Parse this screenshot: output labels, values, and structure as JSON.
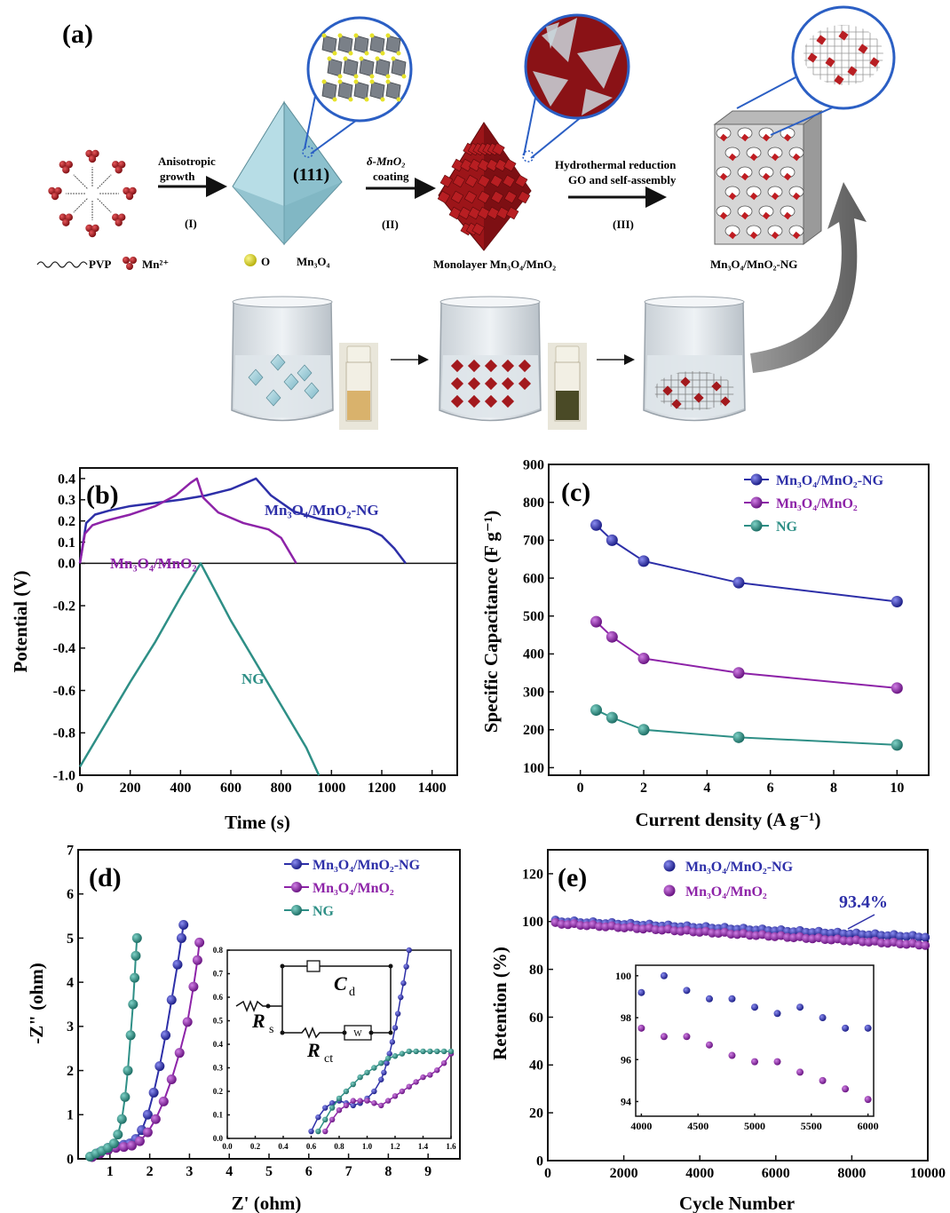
{
  "panel_a": {
    "label": "(a)",
    "step1_label": "Anisotropic growth",
    "step1_label_line1": "Anisotropic",
    "step1_label_line2": "growth",
    "step1_num": "(I)",
    "step2_label_line1": "δ-MnO₂",
    "step2_label_line2": "coating",
    "step2_num": "(II)",
    "step3_label_line1": "Hydrothermal reduction",
    "step3_label_line2": "GO and self-assembly",
    "step3_num": "(III)",
    "facet_label": "(111)",
    "legend_pvp": "PVP",
    "legend_mn": "Mn²⁺",
    "legend_o": "O",
    "legend_mn3o4": "Mn₃O₄",
    "product2": "Monolayer Mn₃O₄/MnO₂",
    "product3": "Mn₃O₄/MnO₂-NG"
  },
  "colors": {
    "ng_blue": "#2d2fa8",
    "mno2_purple": "#8d23a8",
    "ng_teal": "#2e8f86",
    "crystal_red": "#a3191d",
    "octa_blue": "#a8d6e0",
    "ring_blue": "#2b5fc4"
  },
  "chart_data": [
    {
      "panel": "(b)",
      "type": "line",
      "xlabel": "Time (s)",
      "ylabel": "Potential (V)",
      "xlim": [
        0,
        1500
      ],
      "ylim": [
        -1.0,
        0.45
      ],
      "xticks": [
        "0",
        "200",
        "400",
        "600",
        "800",
        "1000",
        "1200",
        "1400"
      ],
      "yticks": [
        "-1.0",
        "-0.8",
        "-0.6",
        "-0.4",
        "-0.2",
        "0.0",
        "0.1",
        "0.2",
        "0.3",
        "0.4"
      ],
      "series": [
        {
          "name": "Mn₃O₄/MnO₂-NG",
          "x": [
            0,
            25,
            60,
            120,
            200,
            300,
            400,
            500,
            600,
            700,
            760,
            850,
            950,
            1050,
            1150,
            1200,
            1250,
            1295
          ],
          "y": [
            0,
            0.19,
            0.23,
            0.25,
            0.27,
            0.285,
            0.3,
            0.32,
            0.35,
            0.4,
            0.32,
            0.245,
            0.21,
            0.185,
            0.16,
            0.13,
            0.07,
            0
          ]
        },
        {
          "name": "Mn₃O₄/MnO₂",
          "x": [
            0,
            20,
            50,
            100,
            200,
            300,
            380,
            440,
            465,
            490,
            550,
            650,
            750,
            800,
            830,
            860
          ],
          "y": [
            0,
            0.14,
            0.18,
            0.2,
            0.23,
            0.27,
            0.32,
            0.38,
            0.4,
            0.31,
            0.24,
            0.19,
            0.16,
            0.12,
            0.06,
            0
          ]
        },
        {
          "name": "NG",
          "x": [
            0,
            100,
            200,
            300,
            400,
            480,
            600,
            700,
            800,
            900,
            950
          ],
          "y": [
            -0.96,
            -0.76,
            -0.56,
            -0.37,
            -0.16,
            0,
            -0.27,
            -0.47,
            -0.67,
            -0.87,
            -1.0
          ]
        }
      ],
      "annotations": [
        "Mn₃O₄/MnO₂-NG",
        "Mn₃O₄/MnO₂",
        "NG"
      ]
    },
    {
      "panel": "(c)",
      "type": "line",
      "xlabel": "Current density (A g⁻¹)",
      "ylabel": "Specific Capacitance (F g⁻¹)",
      "xlim": [
        -1,
        11
      ],
      "ylim": [
        80,
        900
      ],
      "xticks": [
        "0",
        "2",
        "4",
        "6",
        "8",
        "10"
      ],
      "yticks": [
        "100",
        "200",
        "300",
        "400",
        "500",
        "600",
        "700",
        "800",
        "900"
      ],
      "x": [
        0.5,
        1,
        2,
        5,
        10
      ],
      "series": [
        {
          "name": "Mn₃O₄/MnO₂-NG",
          "values": [
            740,
            700,
            645,
            588,
            538
          ]
        },
        {
          "name": "Mn₃O₄/MnO₂",
          "values": [
            485,
            445,
            388,
            350,
            310
          ]
        },
        {
          "name": "NG",
          "values": [
            252,
            232,
            200,
            180,
            160
          ]
        }
      ],
      "legend": "top-right"
    },
    {
      "panel": "(d)",
      "type": "scatter",
      "xlabel": "Z' (ohm)",
      "ylabel": "-Z\" (ohm)",
      "xlim": [
        0.2,
        9.8
      ],
      "ylim": [
        0,
        7
      ],
      "xticks": [
        "1",
        "2",
        "3",
        "4",
        "5",
        "6",
        "7",
        "8",
        "9"
      ],
      "yticks": [
        "0",
        "1",
        "2",
        "3",
        "4",
        "5",
        "6",
        "7"
      ],
      "series": [
        {
          "name": "Mn₃O₄/MnO₂-NG",
          "x": [
            0.55,
            0.75,
            0.95,
            1.15,
            1.35,
            1.5,
            1.65,
            1.8,
            1.95,
            2.1,
            2.25,
            2.4,
            2.55,
            2.7,
            2.8,
            2.85
          ],
          "y": [
            0.05,
            0.15,
            0.25,
            0.3,
            0.32,
            0.35,
            0.45,
            0.65,
            1.0,
            1.5,
            2.1,
            2.8,
            3.6,
            4.4,
            5.0,
            5.3
          ]
        },
        {
          "name": "Mn₃O₄/MnO₂",
          "x": [
            0.55,
            0.75,
            0.95,
            1.15,
            1.35,
            1.55,
            1.75,
            1.95,
            2.15,
            2.35,
            2.55,
            2.75,
            2.95,
            3.1,
            3.2,
            3.25
          ],
          "y": [
            0.04,
            0.12,
            0.2,
            0.25,
            0.27,
            0.3,
            0.4,
            0.6,
            0.9,
            1.3,
            1.8,
            2.4,
            3.1,
            3.9,
            4.5,
            4.9
          ]
        },
        {
          "name": "NG",
          "x": [
            0.5,
            0.65,
            0.8,
            0.95,
            1.1,
            1.2,
            1.3,
            1.38,
            1.45,
            1.52,
            1.58,
            1.62,
            1.65,
            1.68
          ],
          "y": [
            0.05,
            0.12,
            0.18,
            0.25,
            0.35,
            0.55,
            0.9,
            1.4,
            2.0,
            2.8,
            3.5,
            4.1,
            4.6,
            5.0
          ]
        }
      ],
      "legend": "top-right",
      "inset": {
        "xlim": [
          0,
          1.6
        ],
        "ylim": [
          0,
          0.8
        ],
        "xticks": [
          "0.0",
          "0.2",
          "0.4",
          "0.6",
          "0.8",
          "1.0",
          "1.2",
          "1.4",
          "1.6"
        ],
        "yticks": [
          "0.0",
          "0.1",
          "0.2",
          "0.3",
          "0.4",
          "0.5",
          "0.6",
          "0.7",
          "0.8"
        ],
        "circuit": {
          "rs": "R",
          "rs_sub": "s",
          "rct": "R",
          "rct_sub": "ct",
          "cd": "C",
          "cd_sub": "d",
          "w": "W"
        },
        "series": [
          {
            "name": "Mn₃O₄/MnO₂-NG",
            "x": [
              0.6,
              0.65,
              0.7,
              0.75,
              0.8,
              0.85,
              0.9,
              0.95,
              1.0,
              1.05,
              1.1,
              1.12,
              1.14,
              1.16,
              1.18,
              1.2,
              1.22,
              1.24,
              1.26,
              1.28,
              1.3
            ],
            "y": [
              0.03,
              0.09,
              0.13,
              0.15,
              0.16,
              0.15,
              0.14,
              0.15,
              0.17,
              0.2,
              0.25,
              0.28,
              0.32,
              0.36,
              0.41,
              0.47,
              0.53,
              0.6,
              0.66,
              0.73,
              0.8
            ]
          },
          {
            "name": "Mn₃O₄/MnO₂",
            "x": [
              0.7,
              0.75,
              0.8,
              0.85,
              0.9,
              0.95,
              1.0,
              1.05,
              1.1,
              1.15,
              1.2,
              1.25,
              1.3,
              1.35,
              1.4,
              1.45,
              1.5,
              1.55,
              1.6
            ],
            "y": [
              0.03,
              0.08,
              0.12,
              0.14,
              0.16,
              0.16,
              0.16,
              0.15,
              0.14,
              0.16,
              0.18,
              0.2,
              0.22,
              0.24,
              0.26,
              0.27,
              0.29,
              0.32,
              0.36
            ]
          },
          {
            "name": "NG",
            "x": [
              0.65,
              0.7,
              0.75,
              0.8,
              0.85,
              0.9,
              0.95,
              1.0,
              1.05,
              1.1,
              1.15,
              1.2,
              1.25,
              1.3,
              1.35,
              1.4,
              1.45,
              1.5,
              1.55,
              1.6
            ],
            "y": [
              0.03,
              0.08,
              0.13,
              0.17,
              0.2,
              0.23,
              0.26,
              0.28,
              0.3,
              0.32,
              0.34,
              0.35,
              0.36,
              0.37,
              0.37,
              0.37,
              0.37,
              0.37,
              0.37,
              0.37
            ]
          }
        ]
      }
    },
    {
      "panel": "(e)",
      "type": "scatter",
      "xlabel": "Cycle Number",
      "ylabel": "Retention (%)",
      "xlim": [
        0,
        10000
      ],
      "ylim": [
        0,
        130
      ],
      "xticks": [
        "0",
        "2000",
        "4000",
        "6000",
        "8000",
        "10000"
      ],
      "yticks": [
        "0",
        "20",
        "40",
        "60",
        "80",
        "100",
        "120"
      ],
      "annotation": "93.4%",
      "series": [
        {
          "name": "Mn₃O₄/MnO₂-NG",
          "start": 100,
          "end": 93.4
        },
        {
          "name": "Mn₃O₄/MnO₂",
          "start": 99,
          "end": 90
        }
      ],
      "legend": "top-left",
      "inset": {
        "xlim": [
          3950,
          6050
        ],
        "ylim": [
          93.3,
          100.5
        ],
        "xticks": [
          "4000",
          "4500",
          "5000",
          "5500",
          "6000"
        ],
        "yticks": [
          "94",
          "96",
          "98",
          "100"
        ],
        "series": [
          {
            "name": "Mn₃O₄/MnO₂-NG",
            "x": [
              4000,
              4200,
              4400,
              4600,
              4800,
              5000,
              5200,
              5400,
              5600,
              5800,
              6000
            ],
            "y": [
              99.2,
              100.0,
              99.3,
              98.9,
              98.9,
              98.5,
              98.2,
              98.5,
              98.0,
              97.5,
              97.5
            ]
          },
          {
            "name": "Mn₃O₄/MnO₂",
            "x": [
              4000,
              4200,
              4400,
              4600,
              4800,
              5000,
              5200,
              5400,
              5600,
              5800,
              6000
            ],
            "y": [
              97.5,
              97.1,
              97.1,
              96.7,
              96.2,
              95.9,
              95.9,
              95.4,
              95.0,
              94.6,
              94.1
            ]
          }
        ]
      }
    }
  ]
}
